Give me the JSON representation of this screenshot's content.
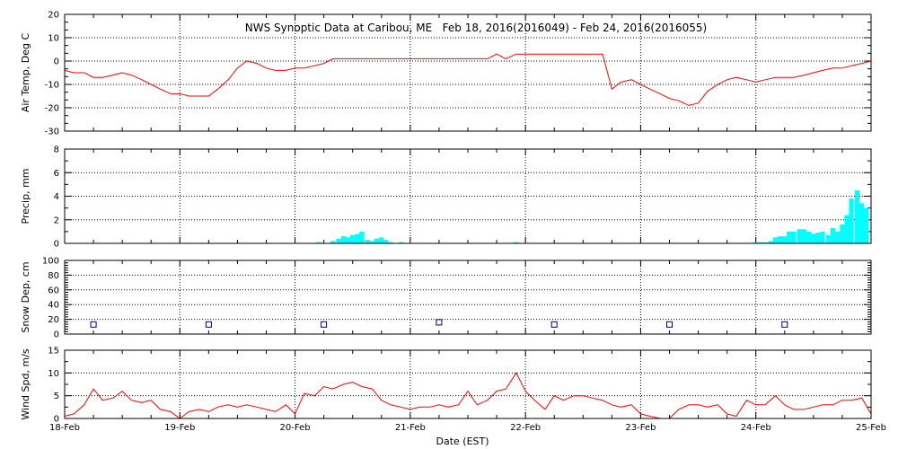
{
  "colors": {
    "air_temp": "#ff0000",
    "precip": "#00ffff",
    "snow_depth": "#000080",
    "wind_speed": "#ff0000",
    "frame": "#000000",
    "grid": "#000000"
  },
  "chart_data": [
    {
      "type": "line",
      "title": "NWS Synoptic Data at Caribou, ME   Feb 18, 2016(2016049) - Feb 24, 2016(2016055)",
      "xlabel": "",
      "ylabel": "Air Temp, Deg C",
      "xlim": [
        0,
        7
      ],
      "ylim": [
        -30,
        20
      ],
      "yticks": [
        "20",
        "10",
        "0",
        "-10",
        "-20",
        "-30"
      ],
      "grid": true,
      "series": [
        {
          "x": [
            0,
            0.08,
            0.17,
            0.25,
            0.33,
            0.42,
            0.5,
            0.58,
            0.67,
            0.75,
            0.83,
            0.92,
            1.0,
            1.08,
            1.17,
            1.25,
            1.33,
            1.42,
            1.5,
            1.58,
            1.67,
            1.75,
            1.83,
            1.92,
            2.0,
            2.08,
            2.17,
            2.25,
            2.33,
            2.42,
            2.5,
            2.58,
            2.67,
            2.75,
            2.83,
            2.92,
            3.0,
            3.08,
            3.17,
            3.25,
            3.33,
            3.42,
            3.5,
            3.58,
            3.67,
            3.75,
            3.83,
            3.92,
            4.0,
            4.08,
            4.17,
            4.25,
            4.33,
            4.42,
            4.5,
            4.58,
            4.67,
            4.75,
            4.83,
            4.92,
            5.0,
            5.08,
            5.17,
            5.25,
            5.33,
            5.42,
            5.5,
            5.58,
            5.67,
            5.75,
            5.83,
            5.92,
            6.0,
            6.08,
            6.17,
            6.25,
            6.33,
            6.42,
            6.5,
            6.58,
            6.67,
            6.75,
            6.83,
            6.92,
            7.0
          ],
          "y": [
            -4,
            -5,
            -5,
            -7,
            -7,
            -6,
            -5,
            -6,
            -8,
            -10,
            -12,
            -14,
            -14,
            -15,
            -15,
            -15,
            -12,
            -8,
            -3,
            0,
            -1,
            -3,
            -4,
            -4,
            -3,
            -3,
            -2,
            -1,
            1,
            1,
            1,
            1,
            1,
            1,
            1,
            1,
            1,
            1,
            1,
            1,
            1,
            1,
            1,
            1,
            1,
            3,
            1,
            3,
            3,
            3,
            3,
            3,
            3,
            3,
            3,
            3,
            3,
            -12,
            -9,
            -8,
            -10,
            -12,
            -14,
            -16,
            -17,
            -19,
            -18,
            -13,
            -10,
            -8,
            -7,
            -8,
            -9,
            -8,
            -7,
            -7,
            -7,
            -6,
            -5,
            -4,
            -3,
            -3,
            -2,
            -1,
            0
          ]
        }
      ]
    },
    {
      "type": "bar",
      "title": "",
      "xlabel": "",
      "ylabel": "Precip, mm",
      "xlim": [
        0,
        7
      ],
      "ylim": [
        0,
        8
      ],
      "yticks": [
        "8",
        "6",
        "4",
        "2",
        "0"
      ],
      "grid": true,
      "x": [
        2.21,
        2.33,
        2.38,
        2.42,
        2.46,
        2.5,
        2.54,
        2.58,
        2.63,
        2.67,
        2.71,
        2.75,
        2.79,
        2.83,
        2.92,
        3.92,
        6.0,
        6.04,
        6.08,
        6.13,
        6.17,
        6.21,
        6.25,
        6.29,
        6.33,
        6.38,
        6.42,
        6.46,
        6.5,
        6.54,
        6.58,
        6.63,
        6.67,
        6.71,
        6.75,
        6.79,
        6.83,
        6.88,
        6.92,
        6.96
      ],
      "values": [
        0.1,
        0.2,
        0.4,
        0.6,
        0.5,
        0.7,
        0.8,
        1.0,
        0.3,
        0.2,
        0.4,
        0.5,
        0.3,
        0.1,
        0.1,
        0.1,
        0.1,
        0.1,
        0.1,
        0.2,
        0.5,
        0.6,
        0.6,
        1.0,
        1.0,
        1.2,
        1.2,
        1.0,
        0.8,
        0.9,
        1.0,
        0.7,
        1.3,
        1.0,
        1.6,
        2.4,
        3.8,
        4.5,
        3.4,
        3.0
      ]
    },
    {
      "type": "scatter",
      "title": "",
      "xlabel": "",
      "ylabel": "Snow Dep, cm",
      "xlim": [
        0,
        7
      ],
      "ylim": [
        0,
        100
      ],
      "yticks": [
        "100",
        "80",
        "60",
        "40",
        "20",
        "0"
      ],
      "grid": true,
      "x": [
        0.25,
        1.25,
        2.25,
        3.25,
        4.25,
        5.25,
        6.25
      ],
      "y": [
        13,
        13,
        13,
        16,
        13,
        13,
        13
      ]
    },
    {
      "type": "line",
      "title": "",
      "xlabel": "Date (EST)",
      "ylabel": "Wind Spd, m/s",
      "xlim": [
        0,
        7
      ],
      "ylim": [
        0,
        15
      ],
      "yticks": [
        "15",
        "10",
        "5",
        "0"
      ],
      "xticks": [
        "18-Feb",
        "19-Feb",
        "20-Feb",
        "21-Feb",
        "22-Feb",
        "23-Feb",
        "24-Feb",
        "25-Feb"
      ],
      "grid": true,
      "series": [
        {
          "x": [
            0,
            0.08,
            0.17,
            0.25,
            0.33,
            0.42,
            0.5,
            0.58,
            0.67,
            0.75,
            0.83,
            0.92,
            1.0,
            1.08,
            1.17,
            1.25,
            1.33,
            1.42,
            1.5,
            1.58,
            1.67,
            1.75,
            1.83,
            1.92,
            2.0,
            2.08,
            2.17,
            2.25,
            2.33,
            2.42,
            2.5,
            2.58,
            2.67,
            2.75,
            2.83,
            2.92,
            3.0,
            3.08,
            3.17,
            3.25,
            3.33,
            3.42,
            3.5,
            3.58,
            3.67,
            3.75,
            3.83,
            3.92,
            4.0,
            4.08,
            4.17,
            4.25,
            4.33,
            4.42,
            4.5,
            4.58,
            4.67,
            4.75,
            4.83,
            4.92,
            5.0,
            5.08,
            5.17,
            5.25,
            5.33,
            5.42,
            5.5,
            5.58,
            5.67,
            5.75,
            5.83,
            5.92,
            6.0,
            6.08,
            6.17,
            6.25,
            6.33,
            6.42,
            6.5,
            6.58,
            6.67,
            6.75,
            6.83,
            6.92,
            7.0
          ],
          "y": [
            0.5,
            1,
            3,
            6.5,
            4,
            4.5,
            6,
            4,
            3.5,
            4,
            2,
            1.5,
            0,
            1.5,
            2,
            1.5,
            2.5,
            3,
            2.5,
            3,
            2.5,
            2,
            1.5,
            3,
            1,
            5.5,
            5,
            7,
            6.5,
            7.5,
            8,
            7,
            6.5,
            4,
            3,
            2.5,
            2,
            2.5,
            2.5,
            3,
            2.5,
            3,
            6,
            3,
            4,
            6,
            6.5,
            10,
            6,
            4,
            2,
            5,
            4,
            5,
            5,
            4.5,
            4,
            3,
            2.5,
            3,
            1,
            0.5,
            0,
            0,
            2,
            3,
            3,
            2.5,
            3,
            1,
            0.5,
            4,
            3,
            3,
            5,
            3,
            2,
            2,
            2.5,
            3,
            3,
            4,
            4,
            4.5,
            1
          ]
        }
      ]
    }
  ]
}
